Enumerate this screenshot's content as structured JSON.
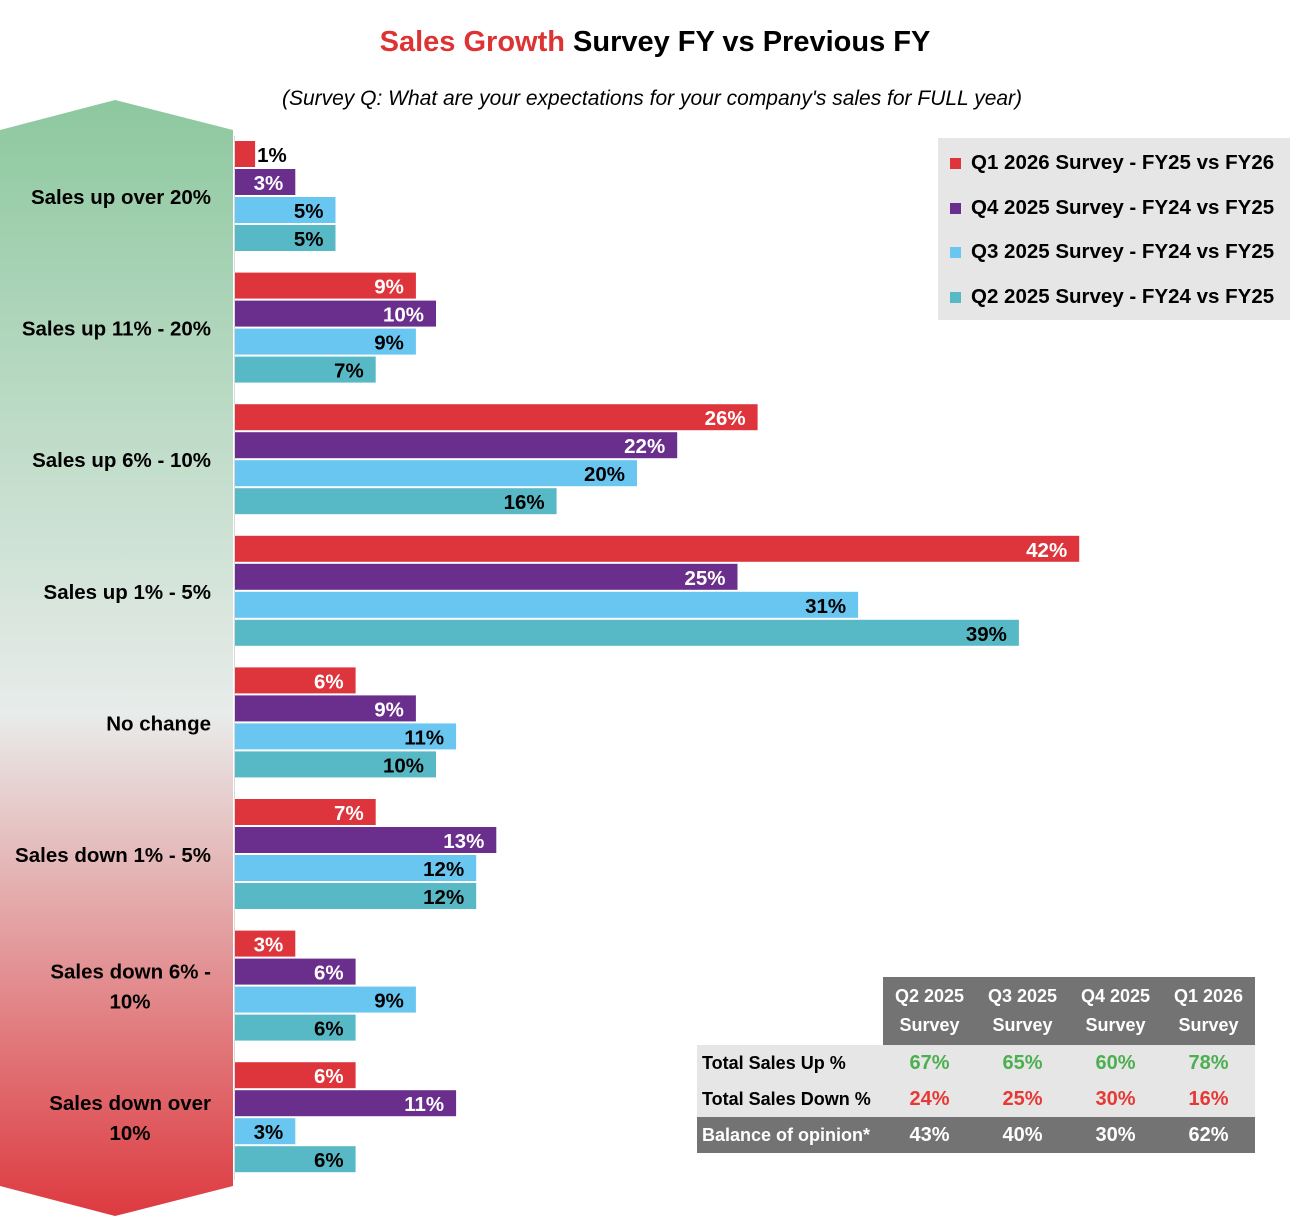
{
  "title": {
    "highlight": "Sales Growth",
    "rest": " Survey FY vs Previous FY"
  },
  "subtitle": "(Survey Q: What are your expectations for your company's sales for FULL year)",
  "colors": {
    "title_highlight": "#dd3333",
    "positive": "#4caf50",
    "negative": "#e53935",
    "arrow_top": "#8dc89f",
    "arrow_mid": "#e8ecea",
    "arrow_bottom": "#dd3a40",
    "table_header": "#737373",
    "table_row": "#e6e6e6",
    "legend_bg": "#e6e6e6"
  },
  "chart_data": {
    "type": "bar",
    "orientation": "horizontal",
    "categories": [
      "Sales up over 20%",
      "Sales up 11% - 20%",
      "Sales up 6% - 10%",
      "Sales up 1% - 5%",
      "No change",
      "Sales down 1% - 5%",
      "Sales down 6% - 10%",
      "Sales down over 10%"
    ],
    "series": [
      {
        "name": "Q1 2026 Survey - FY25 vs FY26",
        "color": "#dd353b",
        "label_color": "#ffffff",
        "values": [
          1,
          9,
          26,
          42,
          6,
          7,
          3,
          6
        ]
      },
      {
        "name": "Q4 2025 Survey - FY24 vs FY25",
        "color": "#6a2f8c",
        "label_color": "#ffffff",
        "values": [
          3,
          10,
          22,
          25,
          9,
          13,
          6,
          11
        ]
      },
      {
        "name": "Q3 2025 Survey - FY24 vs FY25",
        "color": "#68c6f0",
        "label_color": "#000000",
        "values": [
          5,
          9,
          20,
          31,
          11,
          12,
          9,
          3
        ]
      },
      {
        "name": "Q2 2025 Survey - FY24 vs FY25",
        "color": "#58b9c6",
        "label_color": "#000000",
        "values": [
          5,
          7,
          16,
          39,
          10,
          12,
          6,
          6
        ]
      }
    ],
    "value_suffix": "%",
    "xlim": [
      0,
      42
    ],
    "grid": false,
    "legend_position": "top-right"
  },
  "summary_table": {
    "columns": [
      {
        "line1": "Q2 2025",
        "line2": "Survey"
      },
      {
        "line1": "Q3 2025",
        "line2": "Survey"
      },
      {
        "line1": "Q4 2025",
        "line2": "Survey"
      },
      {
        "line1": "Q1 2026",
        "line2": "Survey"
      }
    ],
    "rows": [
      {
        "label": "Total Sales Up %",
        "values": [
          "67%",
          "65%",
          "60%",
          "78%"
        ]
      },
      {
        "label": "Total Sales Down %",
        "values": [
          "24%",
          "25%",
          "30%",
          "16%"
        ]
      },
      {
        "label": "Balance of opinion*",
        "values": [
          "43%",
          "40%",
          "30%",
          "62%"
        ]
      }
    ]
  }
}
